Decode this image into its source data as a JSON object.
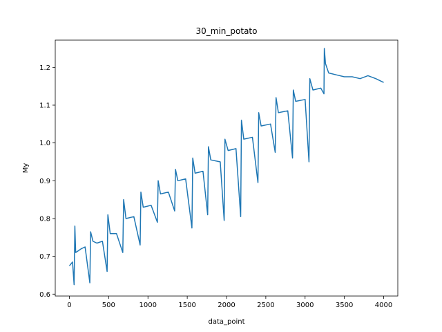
{
  "chart_data": {
    "type": "line",
    "title": "30_min_potato",
    "xlabel": "data_point",
    "ylabel": "My",
    "xlim": [
      -180,
      4180
    ],
    "ylim": [
      0.595,
      1.272
    ],
    "xticks": [
      0,
      500,
      1000,
      1500,
      2000,
      2500,
      3000,
      3500,
      4000
    ],
    "yticks": [
      0.6,
      0.7,
      0.8,
      0.9,
      1.0,
      1.1,
      1.2
    ],
    "ytick_labels": [
      "0.6",
      "0.7",
      "0.8",
      "0.9",
      "1.0",
      "1.1",
      "1.2"
    ],
    "grid": false,
    "series_color": "#1f77b4",
    "series": [
      {
        "x": [
          0,
          40,
          60,
          70,
          80,
          150,
          200,
          260,
          270,
          300,
          350,
          420,
          480,
          490,
          520,
          600,
          680,
          690,
          720,
          820,
          900,
          910,
          940,
          1040,
          1120,
          1130,
          1160,
          1260,
          1340,
          1350,
          1380,
          1480,
          1560,
          1570,
          1600,
          1700,
          1760,
          1770,
          1800,
          1920,
          1970,
          1980,
          2020,
          2120,
          2180,
          2190,
          2220,
          2330,
          2400,
          2410,
          2440,
          2560,
          2620,
          2630,
          2660,
          2780,
          2840,
          2850,
          2880,
          3000,
          3050,
          3060,
          3100,
          3200,
          3240,
          3245,
          3260,
          3300,
          3400,
          3500,
          3600,
          3700,
          3800,
          3900,
          4000
        ],
        "y": [
          0.675,
          0.685,
          0.625,
          0.78,
          0.71,
          0.72,
          0.725,
          0.63,
          0.765,
          0.74,
          0.735,
          0.74,
          0.66,
          0.81,
          0.76,
          0.76,
          0.71,
          0.85,
          0.8,
          0.805,
          0.73,
          0.87,
          0.83,
          0.835,
          0.79,
          0.9,
          0.865,
          0.87,
          0.82,
          0.93,
          0.9,
          0.905,
          0.775,
          0.96,
          0.92,
          0.925,
          0.81,
          0.99,
          0.955,
          0.95,
          0.795,
          1.01,
          0.98,
          0.985,
          0.805,
          1.06,
          1.01,
          1.015,
          0.895,
          1.08,
          1.045,
          1.05,
          0.975,
          1.12,
          1.08,
          1.085,
          0.96,
          1.14,
          1.11,
          1.115,
          0.95,
          1.17,
          1.14,
          1.145,
          1.13,
          1.25,
          1.21,
          1.185,
          1.18,
          1.175,
          1.175,
          1.17,
          1.178,
          1.17,
          1.16
        ]
      }
    ]
  }
}
